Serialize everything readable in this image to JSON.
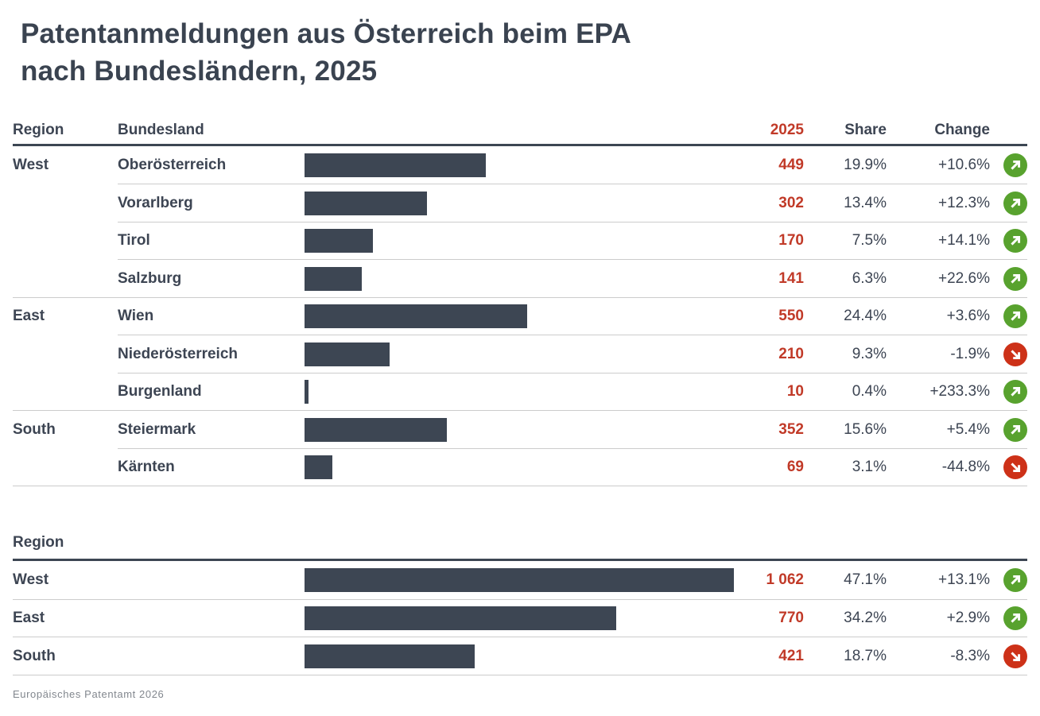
{
  "title": "Patentanmeldungen aus Österreich beim EPA\nnach Bundesländern, 2025",
  "source": "Europäisches Patentamt 2026",
  "colors": {
    "bar": "#3d4653",
    "accent_red": "#c13a28",
    "positive": "#58a22e",
    "negative": "#cd3118"
  },
  "icons": {
    "up": "trend-up-icon",
    "down": "trend-down-icon"
  },
  "detail_table": {
    "headers": {
      "region": "Region",
      "bundesland": "Bundesland",
      "value": "2025",
      "share": "Share",
      "change": "Change"
    },
    "max_value": 1062,
    "rows": [
      {
        "region": "West",
        "bundesland": "Oberösterreich",
        "value": 449,
        "value_label": "449",
        "share": "19.9%",
        "change": "+10.6%",
        "trend": "up",
        "group_start": true
      },
      {
        "region": "",
        "bundesland": "Vorarlberg",
        "value": 302,
        "value_label": "302",
        "share": "13.4%",
        "change": "+12.3%",
        "trend": "up",
        "group_start": false
      },
      {
        "region": "",
        "bundesland": "Tirol",
        "value": 170,
        "value_label": "170",
        "share": "7.5%",
        "change": "+14.1%",
        "trend": "up",
        "group_start": false
      },
      {
        "region": "",
        "bundesland": "Salzburg",
        "value": 141,
        "value_label": "141",
        "share": "6.3%",
        "change": "+22.6%",
        "trend": "up",
        "group_start": false
      },
      {
        "region": "East",
        "bundesland": "Wien",
        "value": 550,
        "value_label": "550",
        "share": "24.4%",
        "change": "+3.6%",
        "trend": "up",
        "group_start": true
      },
      {
        "region": "",
        "bundesland": "Niederösterreich",
        "value": 210,
        "value_label": "210",
        "share": "9.3%",
        "change": "-1.9%",
        "trend": "down",
        "group_start": false
      },
      {
        "region": "",
        "bundesland": "Burgenland",
        "value": 10,
        "value_label": "10",
        "share": "0.4%",
        "change": "+233.3%",
        "trend": "up",
        "group_start": false
      },
      {
        "region": "South",
        "bundesland": "Steiermark",
        "value": 352,
        "value_label": "352",
        "share": "15.6%",
        "change": "+5.4%",
        "trend": "up",
        "group_start": true
      },
      {
        "region": "",
        "bundesland": "Kärnten",
        "value": 69,
        "value_label": "69",
        "share": "3.1%",
        "change": "-44.8%",
        "trend": "down",
        "group_start": false
      }
    ]
  },
  "region_table": {
    "header": "Region",
    "rows": [
      {
        "region": "West",
        "value": 1062,
        "value_label": "1 062",
        "share": "47.1%",
        "change": "+13.1%",
        "trend": "up"
      },
      {
        "region": "East",
        "value": 770,
        "value_label": "770",
        "share": "34.2%",
        "change": "+2.9%",
        "trend": "up"
      },
      {
        "region": "South",
        "value": 421,
        "value_label": "421",
        "share": "18.7%",
        "change": "-8.3%",
        "trend": "down"
      }
    ]
  },
  "chart_data": [
    {
      "type": "bar",
      "orientation": "horizontal",
      "title": "Patentanmeldungen aus Österreich beim EPA nach Bundesländern, 2025",
      "categories": [
        "Oberösterreich",
        "Vorarlberg",
        "Tirol",
        "Salzburg",
        "Wien",
        "Niederösterreich",
        "Burgenland",
        "Steiermark",
        "Kärnten"
      ],
      "region_groups": [
        "West",
        "West",
        "West",
        "West",
        "East",
        "East",
        "East",
        "South",
        "South"
      ],
      "values": [
        449,
        302,
        170,
        141,
        550,
        210,
        10,
        352,
        69
      ],
      "share_pct": [
        19.9,
        13.4,
        7.5,
        6.3,
        24.4,
        9.3,
        0.4,
        15.6,
        3.1
      ],
      "change_pct": [
        10.6,
        12.3,
        14.1,
        22.6,
        3.6,
        -1.9,
        233.3,
        5.4,
        -44.8
      ],
      "xlim": [
        0,
        1062
      ],
      "grid": false,
      "legend": false
    },
    {
      "type": "bar",
      "orientation": "horizontal",
      "title": "Region totals",
      "categories": [
        "West",
        "East",
        "South"
      ],
      "values": [
        1062,
        770,
        421
      ],
      "share_pct": [
        47.1,
        34.2,
        18.7
      ],
      "change_pct": [
        13.1,
        2.9,
        -8.3
      ],
      "xlim": [
        0,
        1062
      ],
      "grid": false,
      "legend": false
    }
  ]
}
